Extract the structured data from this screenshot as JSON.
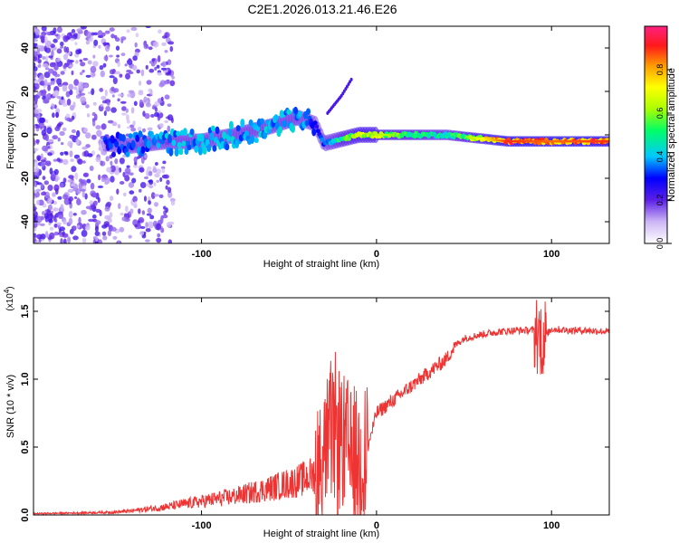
{
  "title": "C2E1.2026.013.21.46.E26",
  "colors": {
    "snr_line": "#ee3333",
    "axis": "#000000",
    "background": "#ffffff"
  },
  "chart_data": [
    {
      "type": "heatmap",
      "xlabel": "Height of straight line (km)",
      "ylabel": "Frequency (Hz)",
      "xlim": [
        -196,
        133
      ],
      "ylim": [
        -50,
        50
      ],
      "x_ticks": [
        -100,
        0,
        100
      ],
      "x_tick_labels": [
        "-100",
        "0",
        "100"
      ],
      "y_ticks": [
        -40,
        -20,
        0,
        20,
        40
      ],
      "y_tick_labels": [
        "-40",
        "-20",
        "0",
        "20",
        "40"
      ],
      "colorbar": {
        "label": "Normalized spectral amplitude",
        "range": [
          0,
          1
        ],
        "ticks": [
          0,
          0.2,
          0.4,
          0.6,
          0.8
        ],
        "tick_labels": [
          "0.0",
          "0.2",
          "0.4",
          "0.6",
          "0.8"
        ]
      },
      "ridge": [
        {
          "x": -155,
          "y": -4,
          "amp": 0.3
        },
        {
          "x": -140,
          "y": -5,
          "amp": 0.35
        },
        {
          "x": -120,
          "y": -3,
          "amp": 0.4
        },
        {
          "x": -100,
          "y": -3,
          "amp": 0.4
        },
        {
          "x": -80,
          "y": 0,
          "amp": 0.4
        },
        {
          "x": -60,
          "y": 4,
          "amp": 0.4
        },
        {
          "x": -45,
          "y": 8,
          "amp": 0.4
        },
        {
          "x": -35,
          "y": 5,
          "amp": 0.3
        },
        {
          "x": -30,
          "y": -4,
          "amp": 0.35
        },
        {
          "x": -10,
          "y": 0,
          "amp": 0.7
        },
        {
          "x": 10,
          "y": 0,
          "amp": 0.6
        },
        {
          "x": 40,
          "y": 0,
          "amp": 0.45
        },
        {
          "x": 75,
          "y": -3,
          "amp": 0.9
        },
        {
          "x": 100,
          "y": -3,
          "amp": 0.85
        },
        {
          "x": 133,
          "y": -3,
          "amp": 0.9
        }
      ],
      "branch": [
        {
          "x": -28,
          "y": 10
        },
        {
          "x": -20,
          "y": 18
        },
        {
          "x": -14,
          "y": 26
        }
      ]
    },
    {
      "type": "line",
      "xlabel": "Height of straight line (km)",
      "ylabel": "SNR (10 * v/v)",
      "scale_label": "(x10",
      "scale_exponent": "4",
      "scale_suffix": ")",
      "xlim": [
        -196,
        133
      ],
      "ylim": [
        0,
        1.6
      ],
      "x_ticks": [
        -100,
        0,
        100
      ],
      "x_tick_labels": [
        "-100",
        "0",
        "100"
      ],
      "y_ticks": [
        0,
        0.5,
        1.0,
        1.5
      ],
      "y_tick_labels": [
        "0.0",
        "0.5",
        "1.0",
        "1.5"
      ],
      "series": [
        {
          "name": "SNR",
          "x": [
            -196,
            -170,
            -150,
            -140,
            -120,
            -100,
            -80,
            -60,
            -45,
            -35,
            -30,
            -25,
            -20,
            -15,
            -10,
            -5,
            0,
            10,
            20,
            30,
            40,
            45,
            50,
            60,
            70,
            80,
            90,
            95,
            100,
            110,
            120,
            133
          ],
          "y": [
            0.01,
            0.015,
            0.02,
            0.03,
            0.06,
            0.1,
            0.14,
            0.2,
            0.25,
            0.3,
            0.45,
            0.6,
            0.55,
            0.45,
            0.4,
            0.5,
            0.75,
            0.85,
            0.95,
            1.05,
            1.15,
            1.25,
            1.3,
            1.33,
            1.35,
            1.36,
            1.36,
            1.3,
            1.37,
            1.36,
            1.36,
            1.35
          ]
        }
      ]
    }
  ]
}
